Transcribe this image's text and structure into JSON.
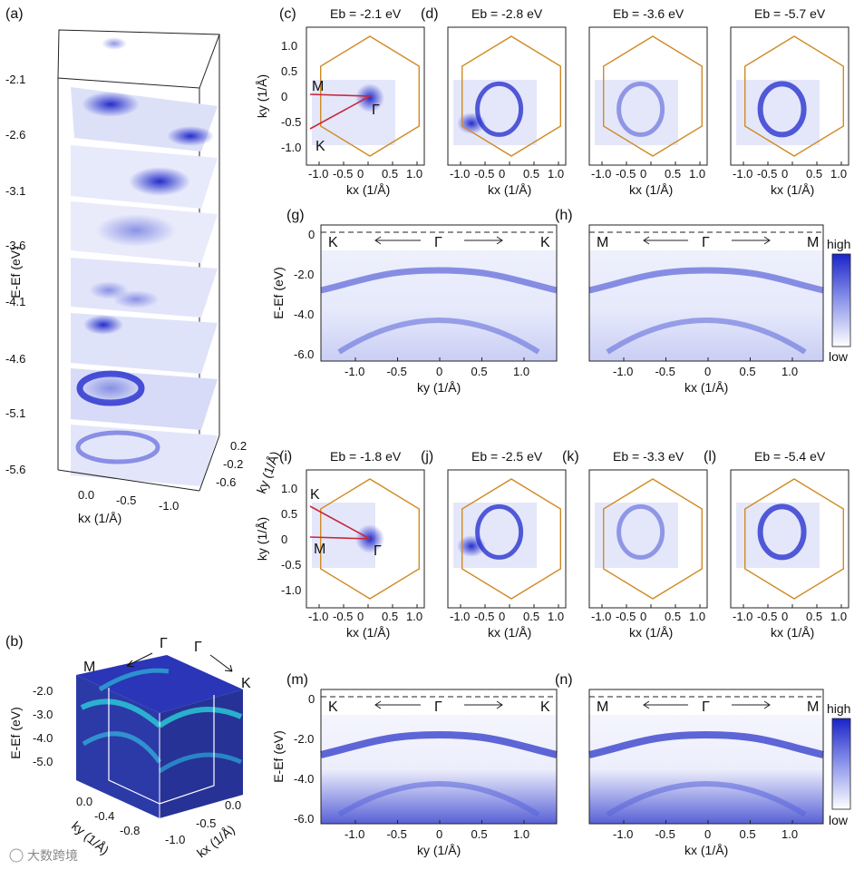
{
  "panel_labels": {
    "a": "(a)",
    "b": "(b)",
    "c": "(c)",
    "d": "(d)",
    "g": "(g)",
    "h": "(h)",
    "i": "(i)",
    "j": "(j)",
    "k": "(k)",
    "l": "(l)",
    "m": "(m)",
    "n": "(n)"
  },
  "panel_a": {
    "ylabel": "E-Ef (eV)",
    "energies": [
      "-2.1",
      "-2.6",
      "-3.1",
      "-3.6",
      "-4.1",
      "-4.6",
      "-5.1",
      "-5.6"
    ],
    "kx_label": "kx (1/Å)",
    "kx_ticks": [
      "0.0",
      "-0.5",
      "-1.0"
    ],
    "ky_label": "ky (1/Å)",
    "ky_ticks": [
      "0.2",
      "-0.2",
      "-0.6"
    ]
  },
  "panel_b": {
    "ylabel": "E-Ef (eV)",
    "energy_ticks": [
      "-2.0",
      "-3.0",
      "-4.0",
      "-5.0"
    ],
    "ky_label": "ky (1/Å)",
    "ky_ticks": [
      "0.0",
      "-0.4",
      "-0.8"
    ],
    "kx_label": "kx (1/Å)",
    "kx_ticks": [
      "0.0",
      "-0.5",
      "-1.0"
    ],
    "points": [
      "M",
      "Γ",
      "Γ",
      "K"
    ]
  },
  "const_energy_maps": {
    "axis_ticks_x": [
      "-1.0",
      "-0.5",
      "0",
      "0.5",
      "1.0"
    ],
    "axis_ticks_y": [
      "1.0",
      "0.5",
      "0",
      "-0.5",
      "-1.0"
    ],
    "xlabel": "kx (1/Å)",
    "ylabel": "ky (1/Å)",
    "top_row_titles": [
      "Eb = -2.1 eV",
      "Eb = -2.8 eV",
      "Eb = -3.6 eV",
      "Eb = -5.7 eV"
    ],
    "bottom_row_titles": [
      "Eb = -1.8 eV",
      "Eb = -2.5 eV",
      "Eb = -3.3 eV",
      "Eb = -5.4 eV"
    ],
    "points_c": [
      "M",
      "Γ",
      "K"
    ],
    "points_i": [
      "K",
      "M",
      "Γ"
    ]
  },
  "dispersion": {
    "ylabel": "E-Ef (eV)",
    "yticks": [
      "0",
      "-2.0",
      "-4.0",
      "-6.0"
    ],
    "xticks": [
      "-1.0",
      "-0.5",
      "0",
      "0.5",
      "1.0"
    ],
    "g": {
      "xlabel": "ky (1/Å)",
      "left": "K",
      "center": "Γ",
      "right": "K"
    },
    "h": {
      "xlabel": "kx (1/Å)",
      "left": "M",
      "center": "Γ",
      "right": "M"
    },
    "m": {
      "xlabel": "ky (1/Å)",
      "left": "K",
      "center": "Γ",
      "right": "K"
    },
    "n": {
      "xlabel": "kx (1/Å)",
      "left": "M",
      "center": "Γ",
      "right": "M"
    }
  },
  "colorbar": {
    "high": "high",
    "low": "low"
  },
  "watermark": "大数跨境",
  "colors": {
    "blue_high": "#1a23c8",
    "blue_mid": "#7f8ae6",
    "blue_low": "#eef0fc",
    "bz_hexagon": "#d08a24",
    "path_red": "#c8283c",
    "cyan": "#2bd0d8",
    "navy": "#232a9e"
  }
}
